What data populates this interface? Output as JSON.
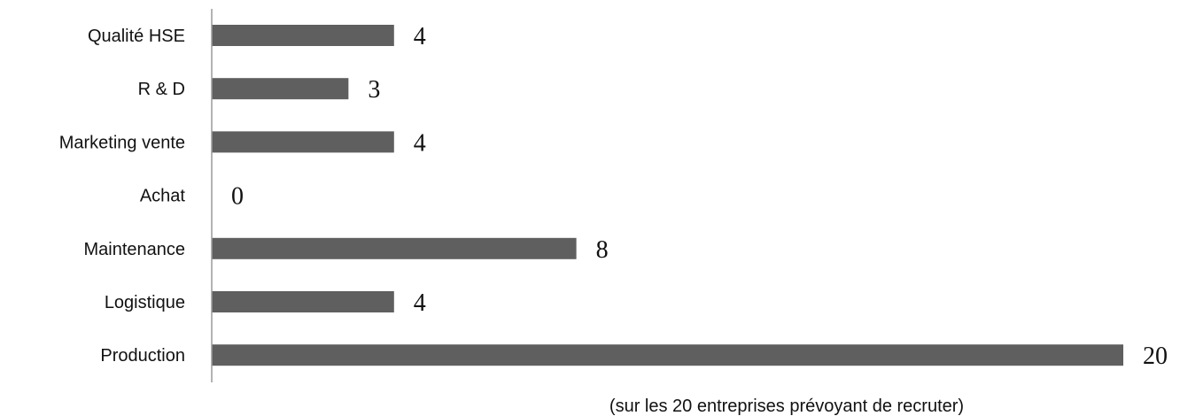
{
  "chart_data": {
    "type": "bar",
    "orientation": "horizontal",
    "categories": [
      "Qualité HSE",
      "R & D",
      "Marketing vente",
      "Achat",
      "Maintenance",
      "Logistique",
      "Production"
    ],
    "values": [
      4,
      3,
      4,
      0,
      8,
      4,
      20
    ],
    "xlim": [
      0,
      20
    ],
    "grid": false,
    "legend": "none",
    "bar_color": "#5f5f5f",
    "axis_color": "#9a9a9a",
    "annotation": "(sur les 20 entreprises prévoyant de recruter)"
  }
}
